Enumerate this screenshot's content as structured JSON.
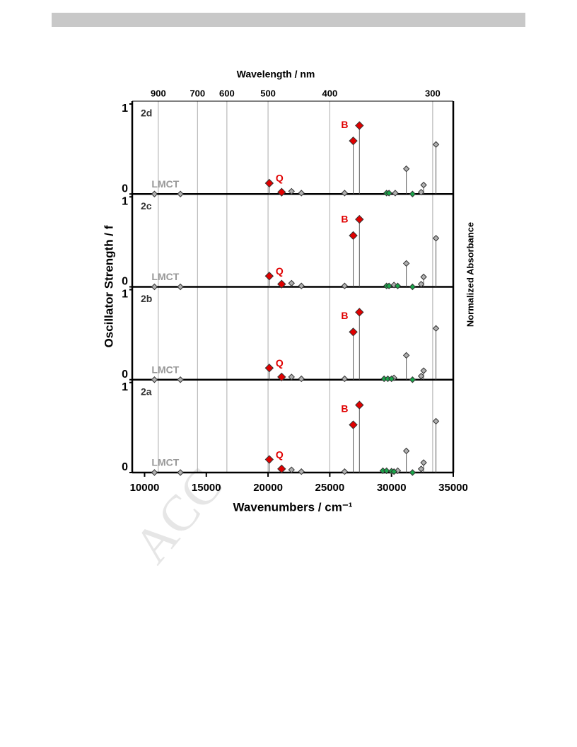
{
  "chart_data": {
    "type": "stick",
    "x_title": "Wavenumbers / cm⁻¹",
    "x2_title": "Wavelength / nm",
    "y_title": "Oscillator Strength / f",
    "y2_title": "Normalized Absorbance",
    "watermark": "ACC",
    "xlim": [
      9000,
      35000
    ],
    "xticks": [
      10000,
      15000,
      20000,
      25000,
      30000,
      35000
    ],
    "x2ticks": [
      900,
      700,
      600,
      500,
      400,
      300
    ],
    "ylim": [
      0,
      1
    ],
    "yticks": [
      0,
      1
    ],
    "grid": true,
    "labels": [
      "B",
      "Q",
      "LMCT"
    ],
    "panels": [
      {
        "label": "2d",
        "series": [
          {
            "color": "#e00000",
            "x": [
              20100,
              21100,
              26900,
              27400
            ],
            "values": [
              0.12,
              0.02,
              0.59,
              0.76
            ]
          },
          {
            "color": "#b0b0b0",
            "x": [
              10800,
              12900,
              21900,
              22700,
              26200,
              30300,
              31200,
              32400,
              32600,
              33600
            ],
            "values": [
              0,
              0,
              0.03,
              0.01,
              0.01,
              0.01,
              0.28,
              0.02,
              0.1,
              0.55
            ]
          },
          {
            "color": "#1aa64a",
            "x": [
              29600,
              29800,
              31700
            ],
            "values": [
              0.01,
              0.01,
              0
            ]
          }
        ]
      },
      {
        "label": "2c",
        "series": [
          {
            "color": "#e00000",
            "x": [
              20100,
              21100,
              26900,
              27400
            ],
            "values": [
              0.12,
              0.03,
              0.57,
              0.75
            ]
          },
          {
            "color": "#b0b0b0",
            "x": [
              10800,
              12900,
              21900,
              22700,
              26200,
              30200,
              31200,
              32400,
              32600,
              33600
            ],
            "values": [
              0,
              0,
              0.04,
              0.01,
              0.01,
              0.02,
              0.26,
              0.03,
              0.11,
              0.54
            ]
          },
          {
            "color": "#1aa64a",
            "x": [
              29600,
              29800,
              30500,
              31700
            ],
            "values": [
              0.01,
              0.01,
              0.01,
              0
            ]
          }
        ]
      },
      {
        "label": "2b",
        "series": [
          {
            "color": "#e00000",
            "x": [
              20100,
              21100,
              26900,
              27400
            ],
            "values": [
              0.13,
              0.03,
              0.53,
              0.75
            ]
          },
          {
            "color": "#b0b0b0",
            "x": [
              10800,
              12900,
              21900,
              22700,
              26200,
              30200,
              31200,
              32400,
              32600,
              33600
            ],
            "values": [
              0,
              0,
              0.03,
              0.01,
              0.01,
              0.02,
              0.27,
              0.04,
              0.1,
              0.57
            ]
          },
          {
            "color": "#1aa64a",
            "x": [
              29400,
              29700,
              30000,
              31700
            ],
            "values": [
              0.01,
              0.01,
              0.01,
              0
            ]
          }
        ]
      },
      {
        "label": "2a",
        "series": [
          {
            "color": "#e00000",
            "x": [
              20100,
              21100,
              26900,
              27400
            ],
            "values": [
              0.145,
              0.04,
              0.53,
              0.75
            ]
          },
          {
            "color": "#b0b0b0",
            "x": [
              10800,
              12900,
              21900,
              22700,
              26200,
              30500,
              31200,
              32400,
              32600,
              33600
            ],
            "values": [
              0,
              0,
              0.03,
              0.01,
              0.01,
              0.02,
              0.24,
              0.04,
              0.11,
              0.57
            ]
          },
          {
            "color": "#1aa64a",
            "x": [
              29300,
              29600,
              30000,
              30200,
              31700
            ],
            "values": [
              0.02,
              0.02,
              0.015,
              0.01,
              0
            ]
          }
        ]
      }
    ]
  }
}
